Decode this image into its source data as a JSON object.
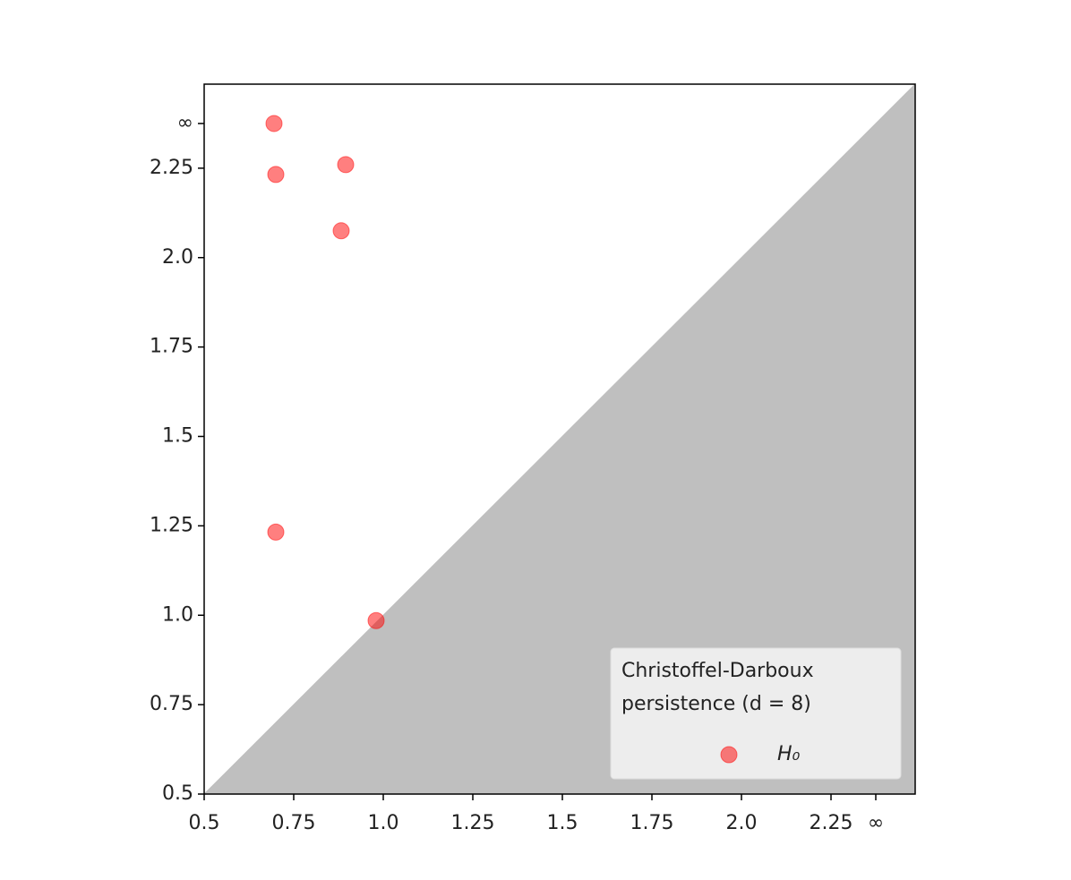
{
  "chart_data": {
    "type": "scatter",
    "series": [
      {
        "name": "H₀",
        "color": "#ff0000",
        "alpha": 0.5,
        "x": [
          0.695,
          0.7,
          0.895,
          0.8825,
          0.7,
          0.98
        ],
        "values": [
          2.375,
          2.2325,
          2.26,
          2.075,
          1.2325,
          0.985
        ]
      }
    ],
    "xlim": [
      0.5,
      2.485
    ],
    "ylim": [
      0.5,
      2.485
    ],
    "xticks": [
      0.5,
      0.75,
      {
        "value": 1,
        "label": "1.0"
      },
      1.25,
      1.5,
      1.75,
      {
        "value": 2,
        "label": "2.0"
      },
      2.25,
      {
        "value": 2.375,
        "label": "∞"
      }
    ],
    "yticks": [
      0.5,
      0.75,
      {
        "value": 1,
        "label": "1.0"
      },
      1.25,
      1.5,
      1.75,
      {
        "value": 2,
        "label": "2.0"
      },
      2.25,
      {
        "value": 2.375,
        "label": "∞"
      }
    ],
    "diagonal_color": "#bfbfbf",
    "legend_title": [
      "Christoffel-Darboux",
      "persistence (d = 8)"
    ],
    "legend_position": "lower right"
  }
}
